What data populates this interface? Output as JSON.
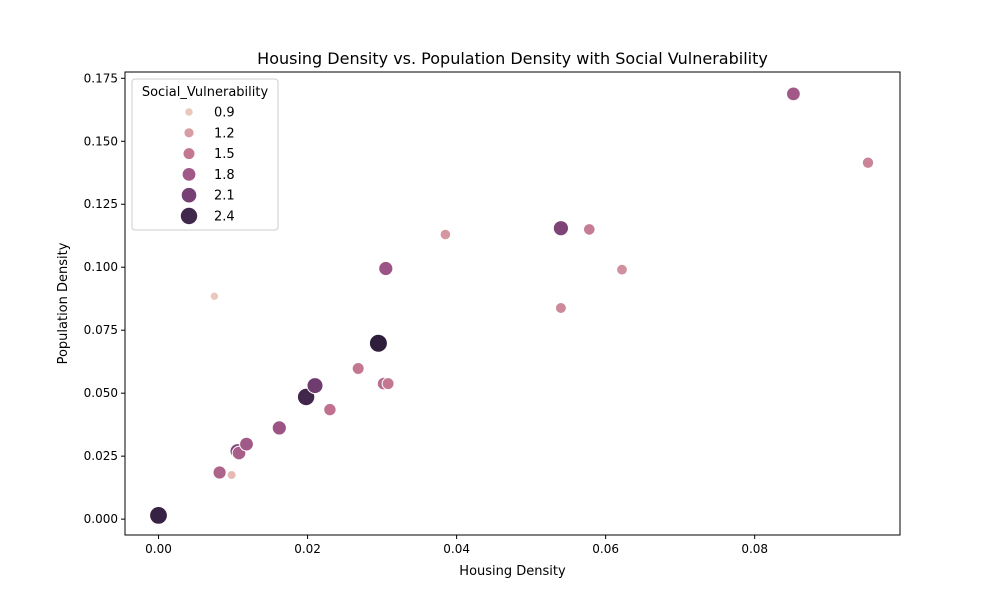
{
  "chart_data": {
    "type": "scatter",
    "title": "Housing Density vs. Population Density with Social Vulnerability",
    "xlabel": "Housing Density",
    "ylabel": "Population Density",
    "xlim": [
      -0.0045,
      0.0995
    ],
    "ylim": [
      -0.0063,
      0.1775
    ],
    "xticks": [
      "0.00",
      "0.02",
      "0.04",
      "0.06",
      "0.08"
    ],
    "xtick_values": [
      0,
      0.02,
      0.04,
      0.06,
      0.08
    ],
    "yticks": [
      "0.000",
      "0.025",
      "0.050",
      "0.075",
      "0.100",
      "0.125",
      "0.150",
      "0.175"
    ],
    "ytick_values": [
      0,
      0.025,
      0.05,
      0.075,
      0.1,
      0.125,
      0.15,
      0.175
    ],
    "grid": false,
    "legend": {
      "title": "Social_Vulnerability",
      "placement": "top-left",
      "entries": [
        "0.9",
        "1.2",
        "1.5",
        "1.8",
        "2.1",
        "2.4"
      ],
      "entry_values": [
        0.9,
        1.2,
        1.5,
        1.8,
        2.1,
        2.4
      ]
    },
    "hue_range": [
      0.9,
      2.5
    ],
    "colors": [
      "#ebc8be",
      "#d79aa2",
      "#c0728f",
      "#9a5385",
      "#6b3a6e",
      "#2e1e3c"
    ],
    "points": [
      {
        "x": 0.0,
        "y": 0.0015,
        "sv": 2.45
      },
      {
        "x": 0.0075,
        "y": 0.0885,
        "sv": 0.9
      },
      {
        "x": 0.0082,
        "y": 0.0185,
        "sv": 1.7
      },
      {
        "x": 0.0098,
        "y": 0.0175,
        "sv": 1.0
      },
      {
        "x": 0.0106,
        "y": 0.027,
        "sv": 2.0
      },
      {
        "x": 0.0108,
        "y": 0.0262,
        "sv": 1.75
      },
      {
        "x": 0.0118,
        "y": 0.0298,
        "sv": 1.8
      },
      {
        "x": 0.0162,
        "y": 0.0362,
        "sv": 1.85
      },
      {
        "x": 0.0198,
        "y": 0.0485,
        "sv": 2.4
      },
      {
        "x": 0.021,
        "y": 0.053,
        "sv": 2.15
      },
      {
        "x": 0.023,
        "y": 0.0435,
        "sv": 1.55
      },
      {
        "x": 0.0268,
        "y": 0.0598,
        "sv": 1.5
      },
      {
        "x": 0.0295,
        "y": 0.0698,
        "sv": 2.5
      },
      {
        "x": 0.0302,
        "y": 0.0538,
        "sv": 1.6
      },
      {
        "x": 0.0308,
        "y": 0.0538,
        "sv": 1.5
      },
      {
        "x": 0.0305,
        "y": 0.0995,
        "sv": 1.85
      },
      {
        "x": 0.0385,
        "y": 0.113,
        "sv": 1.25
      },
      {
        "x": 0.054,
        "y": 0.1155,
        "sv": 2.05
      },
      {
        "x": 0.054,
        "y": 0.0838,
        "sv": 1.35
      },
      {
        "x": 0.0578,
        "y": 0.115,
        "sv": 1.45
      },
      {
        "x": 0.0622,
        "y": 0.099,
        "sv": 1.3
      },
      {
        "x": 0.0852,
        "y": 0.1688,
        "sv": 1.8
      },
      {
        "x": 0.0952,
        "y": 0.1415,
        "sv": 1.4
      }
    ]
  }
}
